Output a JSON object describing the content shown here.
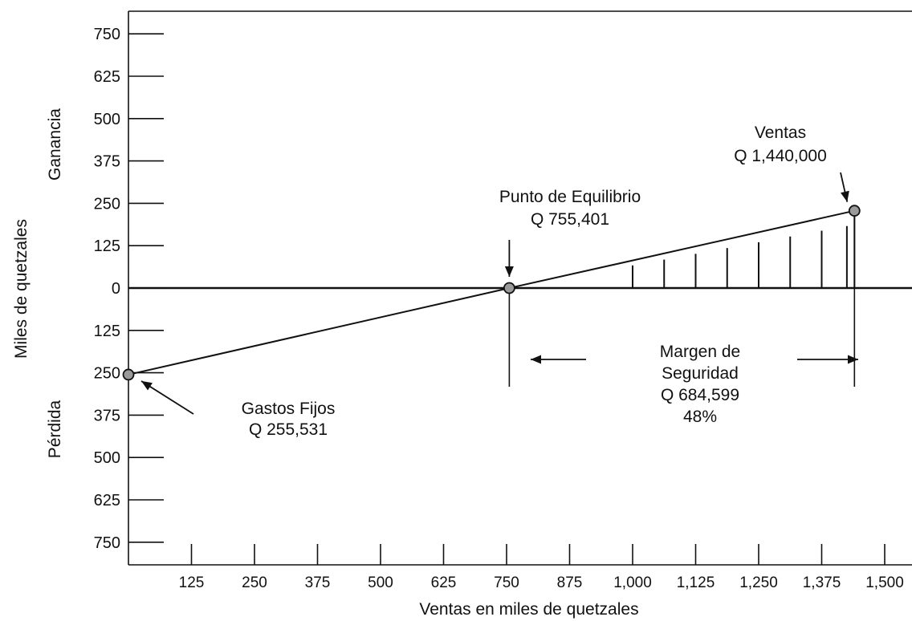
{
  "chart_data": {
    "type": "line",
    "xlabel": "Ventas en miles de quetzales",
    "ylabel": "Miles de quetzales",
    "ylabel_upper": "Ganancia",
    "ylabel_lower": "Pérdida",
    "xlim": [
      0,
      1530
    ],
    "ylim": [
      -815,
      825
    ],
    "x_ticks": [
      125,
      250,
      375,
      500,
      625,
      750,
      875,
      1000,
      1125,
      1250,
      1375,
      1500
    ],
    "x_tick_labels": [
      "125",
      "250",
      "375",
      "500",
      "625",
      "750",
      "875",
      "1,000",
      "1,125",
      "1,250",
      "1,375",
      "1,500"
    ],
    "y_ticks": [
      750,
      625,
      500,
      375,
      250,
      125,
      0,
      -125,
      -250,
      -375,
      -500,
      -625,
      -750
    ],
    "y_tick_labels": [
      "750",
      "625",
      "500",
      "375",
      "250",
      "125",
      "0",
      "125",
      "250",
      "375",
      "500",
      "625",
      "750"
    ],
    "series": [
      {
        "x": [
          0,
          755.401,
          1440
        ],
        "y": [
          -255.531,
          0,
          228
        ]
      }
    ],
    "points": [
      {
        "x": 0,
        "y": -255.531,
        "label_lines": [
          "Gastos Fijos",
          "Q 255,531"
        ]
      },
      {
        "x": 755.401,
        "y": 0,
        "label_lines": [
          "Punto de Equilibrio",
          "Q 755,401"
        ]
      },
      {
        "x": 1440,
        "y": 228,
        "label_lines": [
          "Ventas",
          "Q 1,440,000"
        ]
      }
    ],
    "margin_annotation": [
      "Margen de",
      "Seguridad",
      "Q 684,599",
      "48%"
    ],
    "hatch_x": [
      1000,
      1062.5,
      1125,
      1187.5,
      1250,
      1312.5,
      1375,
      1425,
      1440
    ],
    "grid": false
  }
}
